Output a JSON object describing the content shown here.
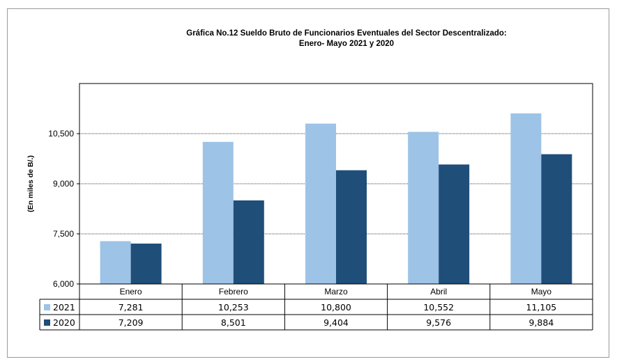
{
  "chart_data": {
    "type": "bar",
    "title": "Gráfica No.12 Sueldo Bruto de Funcionarios Eventuales del Sector Descentralizado:",
    "subtitle": "Enero- Mayo 2021 y 2020",
    "ylabel": "(En miles de B/.)",
    "ylim": [
      6000,
      12000
    ],
    "yticks": [
      "6,000",
      "7,500",
      "9,000",
      "10,500"
    ],
    "ytick_values": [
      6000,
      7500,
      9000,
      10500
    ],
    "grid": true,
    "legend": "data-table",
    "categories": [
      "Enero",
      "Febrero",
      "Marzo",
      "Abril",
      "Mayo"
    ],
    "series": [
      {
        "name": "2021",
        "color": "#9dc3e6",
        "values": [
          7281,
          10253,
          10800,
          10552,
          11105
        ],
        "labels": [
          "7,281",
          "10,253",
          "10,800",
          "10,552",
          "11,105"
        ]
      },
      {
        "name": "2020",
        "color": "#1f4e79",
        "values": [
          7209,
          8501,
          9404,
          9576,
          9884
        ],
        "labels": [
          "7,209",
          "8,501",
          "9,404",
          "9,576",
          "9,884"
        ]
      }
    ]
  }
}
